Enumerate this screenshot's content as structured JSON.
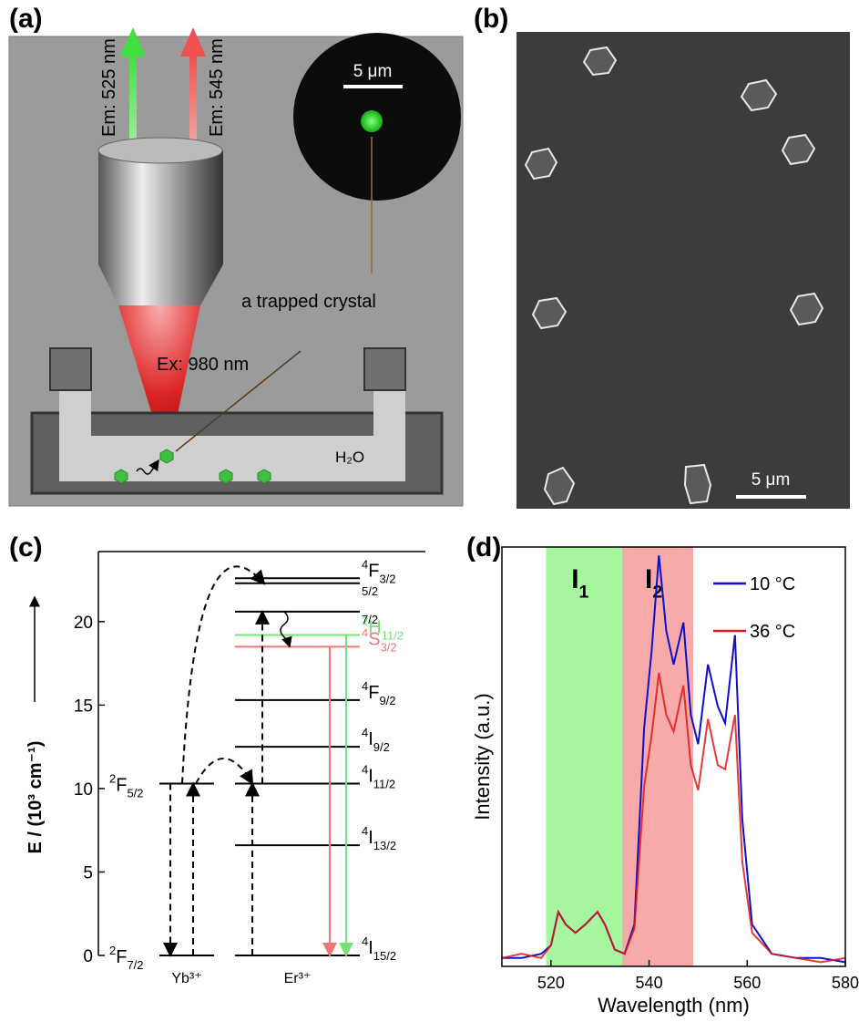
{
  "panels": {
    "a": {
      "label": "(a)",
      "emission_green": "Em: 525 nm",
      "emission_red": "Em: 545 nm",
      "scale_bar": "5 μm",
      "annotation": "a trapped crystal",
      "excitation": "Ex: 980 nm",
      "medium": "H₂O"
    },
    "b": {
      "label": "(b)",
      "scale_bar": "5 μm"
    },
    "c": {
      "label": "(c)"
    },
    "d": {
      "label": "(d)"
    }
  },
  "chart_data": [
    {
      "type": "energy-level",
      "y_label": "E / (10³ cm⁻¹)",
      "ylim": [
        0,
        24.2
      ],
      "yticks": [
        0,
        5,
        10,
        15,
        20
      ],
      "ions": [
        {
          "name": "Yb³⁺",
          "levels": [
            {
              "energy": 0,
              "color": "#000000",
              "term": {
                "sup": "2",
                "main": "F",
                "sub": "7/2"
              }
            },
            {
              "energy": 10.3,
              "color": "#000000",
              "term": {
                "sup": "2",
                "main": "F",
                "sub": "5/2"
              }
            }
          ]
        },
        {
          "name": "Er³⁺",
          "levels": [
            {
              "energy": 0,
              "color": "#000000",
              "term": {
                "sup": "4",
                "main": "I",
                "sub": "15/2"
              }
            },
            {
              "energy": 6.6,
              "color": "#000000",
              "term": {
                "sup": "4",
                "main": "I",
                "sub": "13/2"
              }
            },
            {
              "energy": 10.3,
              "color": "#000000",
              "term": {
                "sup": "4",
                "main": "I",
                "sub": "11/2"
              }
            },
            {
              "energy": 12.5,
              "color": "#000000",
              "term": {
                "sup": "4",
                "main": "I",
                "sub": "9/2"
              }
            },
            {
              "energy": 15.3,
              "color": "#000000",
              "term": {
                "sup": "4",
                "main": "F",
                "sub": "9/2"
              }
            },
            {
              "energy": 18.5,
              "color": "#ee7777",
              "term": {
                "sup": "4",
                "main": "S",
                "sub": "3/2"
              }
            },
            {
              "energy": 19.2,
              "color": "#77e077",
              "term": {
                "sup": "2",
                "main": "H",
                "sub": "11/2"
              }
            },
            {
              "energy": 20.6,
              "color": "#000000",
              "term": {
                "sub": "7/2"
              }
            },
            {
              "energy": 22.3,
              "color": "#000000",
              "term": {
                "sub": "5/2"
              }
            },
            {
              "energy": 22.6,
              "color": "#000000",
              "term": {
                "sup": "4",
                "main": "F",
                "sub": "3/2"
              }
            }
          ]
        }
      ]
    },
    {
      "type": "line",
      "x_label": "Wavelength (nm)",
      "y_label": "Intensity (a.u.)",
      "xlim": [
        510,
        580
      ],
      "xticks": [
        520,
        540,
        560,
        580
      ],
      "ylim": [
        0,
        1
      ],
      "legend": "upper right",
      "bands": [
        {
          "label": {
            "main": "I",
            "sub": "1"
          },
          "range": [
            519,
            534.5
          ],
          "color": "#a8f5a0"
        },
        {
          "label": {
            "main": "I",
            "sub": "2"
          },
          "range": [
            534.5,
            549
          ],
          "color": "#f6aaaa"
        }
      ],
      "x": [
        510,
        514,
        518,
        520,
        521.5,
        523,
        525,
        527,
        529.5,
        531,
        533,
        535,
        537,
        539,
        540.5,
        542,
        543.5,
        545,
        547,
        548.5,
        550,
        552,
        554,
        555.5,
        557.5,
        559,
        561,
        565,
        570,
        575,
        580
      ],
      "series": [
        {
          "name": "10 °C",
          "color": "#1010c8",
          "values": [
            0.02,
            0.02,
            0.03,
            0.05,
            0.13,
            0.1,
            0.08,
            0.1,
            0.13,
            0.1,
            0.04,
            0.03,
            0.1,
            0.57,
            0.75,
            0.98,
            0.8,
            0.72,
            0.82,
            0.6,
            0.53,
            0.72,
            0.62,
            0.58,
            0.79,
            0.35,
            0.1,
            0.03,
            0.02,
            0.02,
            0.01
          ]
        },
        {
          "name": "36 °C",
          "color": "#e01818",
          "values": [
            0.02,
            0.03,
            0.02,
            0.05,
            0.13,
            0.1,
            0.08,
            0.1,
            0.13,
            0.1,
            0.04,
            0.03,
            0.09,
            0.43,
            0.55,
            0.7,
            0.6,
            0.56,
            0.67,
            0.48,
            0.42,
            0.59,
            0.48,
            0.47,
            0.6,
            0.25,
            0.08,
            0.03,
            0.02,
            0.01,
            0.02
          ]
        }
      ]
    }
  ]
}
